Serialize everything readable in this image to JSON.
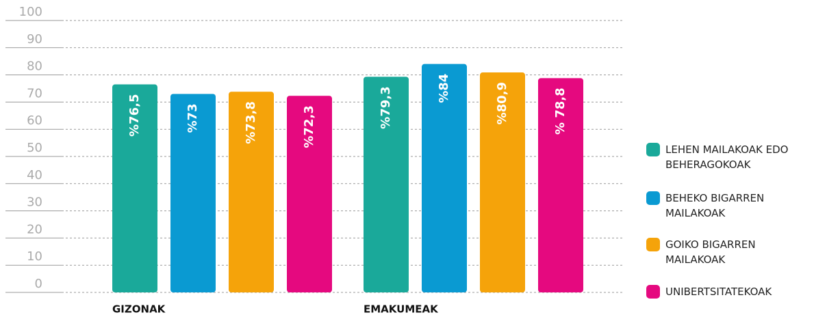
{
  "chart_data": {
    "type": "bar",
    "categories": [
      "GIZONAK",
      "EMAKUMEAK"
    ],
    "series": [
      {
        "name": "LEHEN MAILAKOAK EDO BEHERAGOKOAK",
        "color": "#1aa99a",
        "values": [
          76.5,
          79.3
        ],
        "value_labels": [
          "%76,5",
          "%79,3"
        ]
      },
      {
        "name": "BEHEKO BIGARREN MAILAKOAK",
        "color": "#0a9ad2",
        "values": [
          73,
          84
        ],
        "value_labels": [
          "%73",
          "%84"
        ]
      },
      {
        "name": "GOIKO BIGARREN MAILAKOAK",
        "color": "#f5a30a",
        "values": [
          73.8,
          80.9
        ],
        "value_labels": [
          "%73,8",
          "%80,9"
        ]
      },
      {
        "name": "UNIBERTSITATEKOAK",
        "color": "#e5097f",
        "values": [
          72.3,
          78.8
        ],
        "value_labels": [
          "%72,3",
          "% 78,8"
        ]
      }
    ],
    "ylim": [
      0,
      100
    ],
    "yticks": [
      0,
      10,
      20,
      30,
      40,
      50,
      60,
      70,
      80,
      90,
      100
    ],
    "grid": true,
    "legend": "right"
  }
}
